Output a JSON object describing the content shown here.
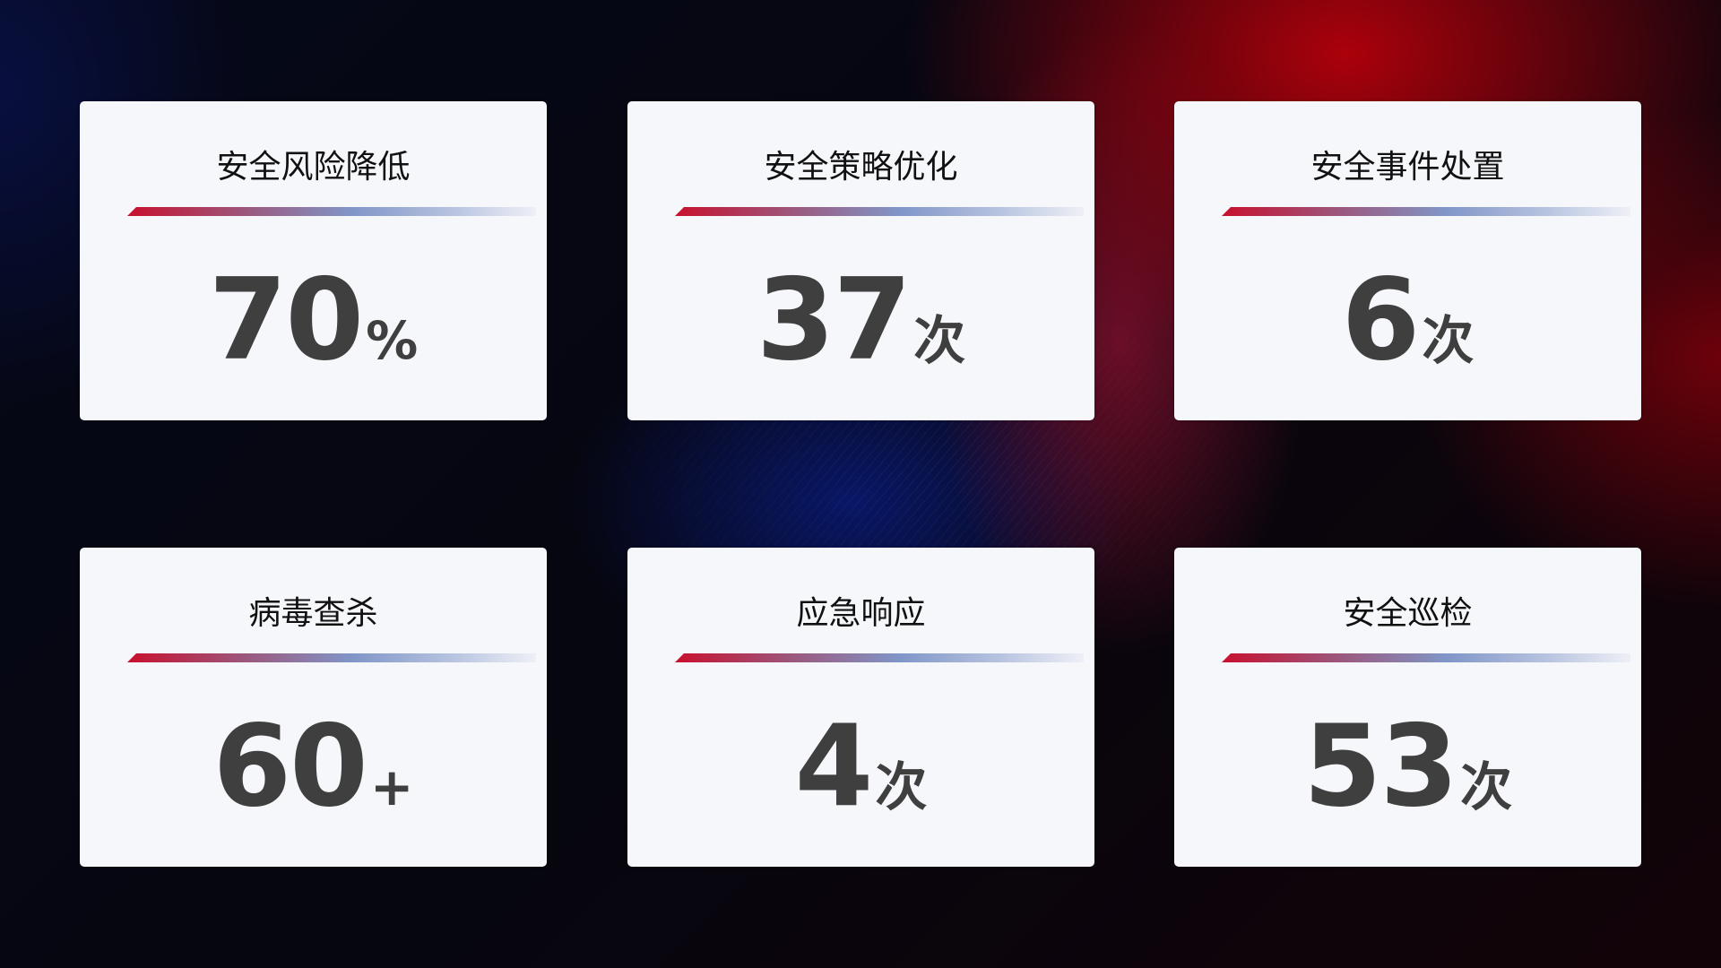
{
  "cards": [
    {
      "title": "安全风险降低",
      "value": "70",
      "unit": "%"
    },
    {
      "title": "安全策略优化",
      "value": "37",
      "unit": "次"
    },
    {
      "title": "安全事件处置",
      "value": "6",
      "unit": "次"
    },
    {
      "title": "病毒查杀",
      "value": "60",
      "unit": "+"
    },
    {
      "title": "应急响应",
      "value": "4",
      "unit": "次"
    },
    {
      "title": "安全巡检",
      "value": "53",
      "unit": "次"
    }
  ],
  "colors": {
    "accent_red": "#c8102e",
    "accent_blue": "#8096c8",
    "card_bg": "#f6f7fb",
    "value_text": "#3f3f3f"
  }
}
